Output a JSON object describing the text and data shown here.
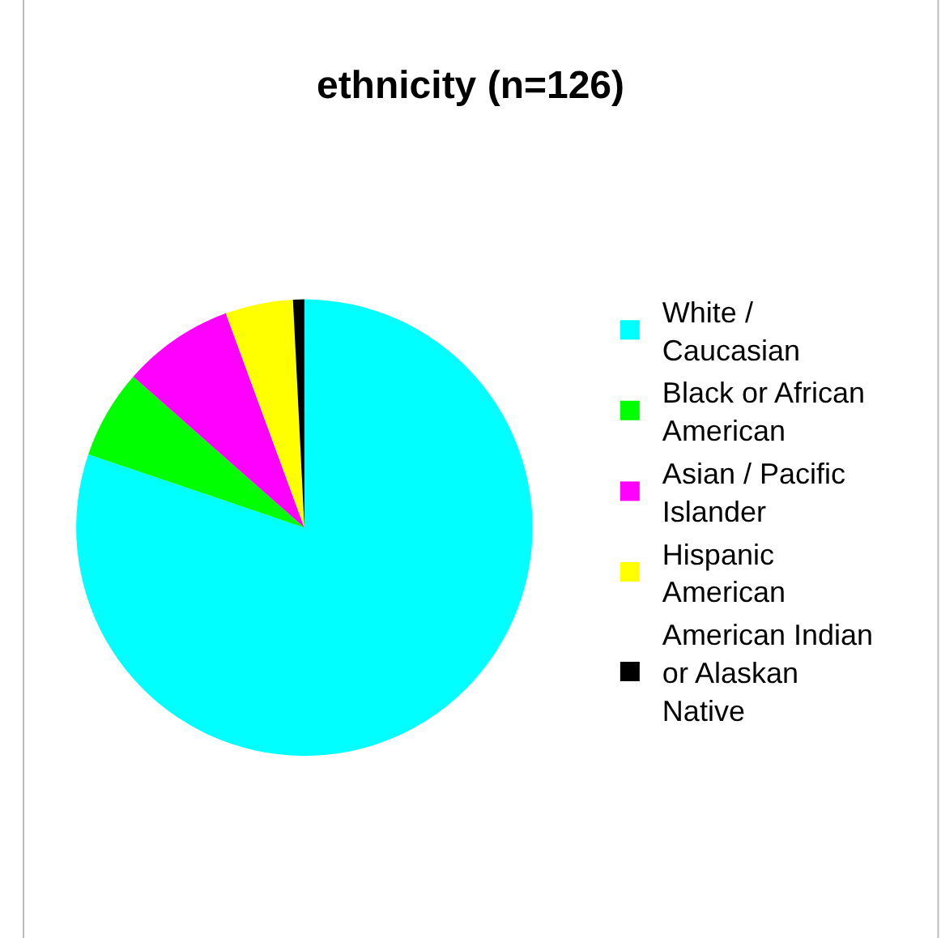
{
  "chart_data": {
    "type": "pie",
    "title": "ethnicity (n=126)",
    "categories": [
      "White / Caucasian",
      "Black or African American",
      "Asian / Pacific Islander",
      "Hispanic American",
      "American Indian or Alaskan Native"
    ],
    "values": [
      80.2,
      6.3,
      7.9,
      4.8,
      0.8
    ],
    "colors": [
      "#00ffff",
      "#00ff00",
      "#ff00ff",
      "#ffff00",
      "#000000"
    ],
    "legend": "right"
  }
}
